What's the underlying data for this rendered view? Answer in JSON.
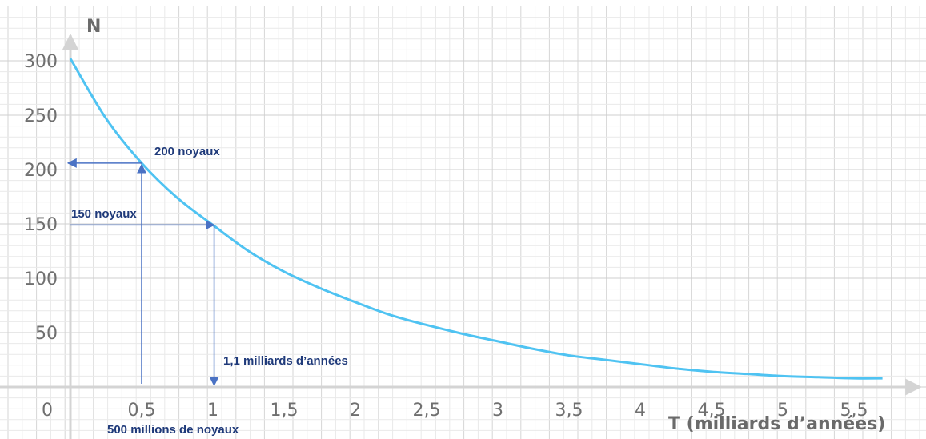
{
  "chart_data": {
    "type": "line",
    "xlabel": "T (milliards d’années)",
    "ylabel": "N",
    "xlim": [
      0,
      5.7
    ],
    "ylim": [
      0,
      300
    ],
    "origin_label": "0",
    "x_ticks": [
      "0,5",
      "1",
      "1,5",
      "2",
      "2,5",
      "3",
      "3,5",
      "4",
      "4,5",
      "5",
      "5,5"
    ],
    "x_tick_values": [
      0.5,
      1,
      1.5,
      2,
      2.5,
      3,
      3.5,
      4,
      4.5,
      5,
      5.5
    ],
    "y_ticks": [
      "50",
      "100",
      "150",
      "200",
      "250",
      "300"
    ],
    "y_tick_values": [
      50,
      100,
      150,
      200,
      250,
      300
    ],
    "grid": true,
    "series": [
      {
        "color": "#4fc3f2",
        "x": [
          0,
          0.25,
          0.5,
          0.75,
          1,
          1.25,
          1.5,
          1.75,
          2,
          2.25,
          2.5,
          2.75,
          3,
          3.25,
          3.5,
          3.75,
          4,
          4.25,
          4.5,
          4.75,
          5,
          5.25,
          5.5,
          5.7
        ],
        "y": [
          302,
          247,
          206,
          174,
          149,
          125,
          106,
          91,
          78,
          66,
          57,
          49,
          42,
          35,
          29,
          25,
          21,
          17,
          14,
          12,
          10,
          9,
          8,
          8
        ]
      }
    ],
    "annotations": {
      "label_200": "200 noyaux",
      "label_150": "150 noyaux",
      "label_500m": "500 millions de noyaux",
      "label_11": "1,1 milliards d’années",
      "color": "#4a72c4",
      "point_a": {
        "x": 0.5,
        "y": 206
      },
      "point_b": {
        "x": 1.02,
        "y": 149
      }
    }
  }
}
